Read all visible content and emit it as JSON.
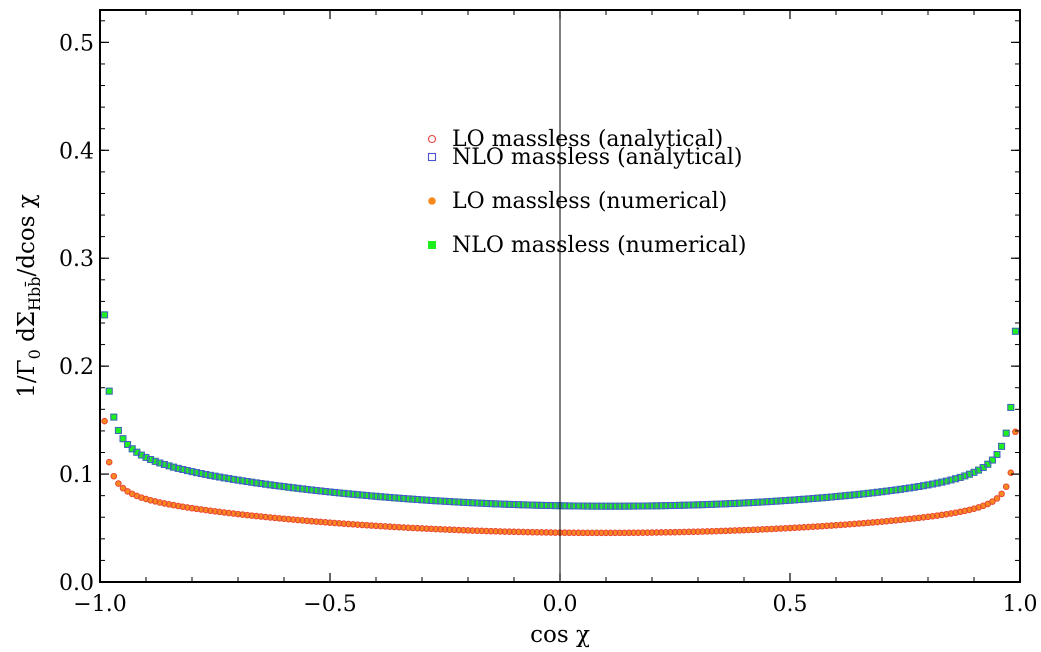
{
  "chart_data": {
    "type": "scatter",
    "xlabel": "cos χ",
    "ylabel": {
      "prefix": "1/Γ",
      "prefix_sub": "0",
      "middle": "  dΣ",
      "sub": "Hbb̄",
      "suffix": "/dcos χ"
    },
    "xlim": [
      -1.0,
      1.0
    ],
    "ylim": [
      0.0,
      0.53
    ],
    "xticks": [
      "−1.0",
      "−0.5",
      "0.0",
      "0.5",
      "1.0"
    ],
    "yticks": [
      "0.0",
      "0.1",
      "0.2",
      "0.3",
      "0.4",
      "0.5"
    ],
    "grid": false,
    "legend_position": "top-center",
    "series": [
      {
        "name": "LO massless (analytical)",
        "marker": "open-circle",
        "color": "#e8433a",
        "model": {
          "a": 0.0455,
          "b": 0.025,
          "c": 0.0015,
          "x0": 0.1
        }
      },
      {
        "name": "NLO massless (analytical)",
        "marker": "open-square",
        "color": "#4a52d6",
        "model": {
          "a": 0.0702,
          "b": 0.032,
          "c": 0.0028,
          "x0": 0.12
        }
      },
      {
        "name": "LO massless (numerical)",
        "marker": "filled-circle",
        "color": "#f7891e",
        "model": {
          "a": 0.0455,
          "b": 0.025,
          "c": 0.0015,
          "x0": 0.1
        }
      },
      {
        "name": "NLO massless (numerical)",
        "marker": "filled-square",
        "color": "#1ef01e",
        "model": {
          "a": 0.0702,
          "b": 0.032,
          "c": 0.0028,
          "x0": 0.12
        }
      }
    ],
    "points_per_series": 200
  }
}
